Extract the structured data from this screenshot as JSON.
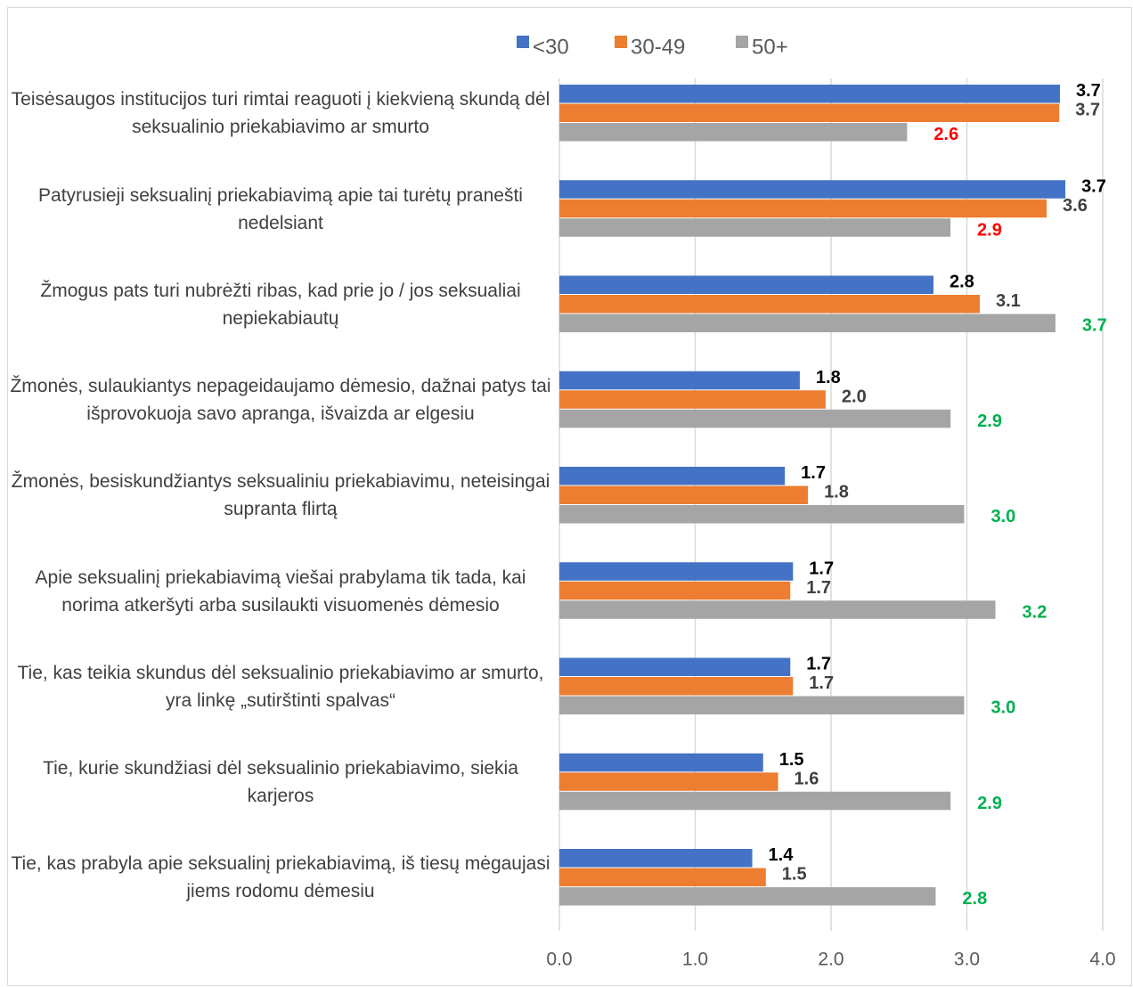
{
  "chart_data": {
    "type": "hbar",
    "categories": [
      "Teisėsaugos institucijos turi rimtai reaguoti į kiekvieną skundą dėl seksualinio priekabiavimo ar smurto",
      "Patyrusieji seksualinį priekabiavimą apie tai turėtų pranešti nedelsiant",
      "Žmogus pats turi nubrėžti ribas, kad prie jo / jos seksualiai nepiekabiautų",
      "Žmonės, sulaukiantys nepageidaujamo dėmesio, dažnai patys tai išprovokuoja savo apranga, išvaizda ar elgesiu",
      "Žmonės, besiskundžiantys seksualiniu priekabiavimu, neteisingai supranta flirtą",
      "Apie seksualinį priekabiavimą viešai prabylama tik tada, kai norima atkeršyti arba susilaukti visuomenės dėmesio",
      "Tie, kas teikia skundus dėl seksualinio priekabiavimo ar smurto, yra linkę „sutirštinti spalvas“",
      "Tie, kurie skundžiasi dėl seksualinio priekabiavimo, siekia karjeros",
      "Tie, kas prabyla apie seksualinį priekabiavimą, iš tiesų mėgaujasi jiems rodomu dėmesiu"
    ],
    "series": [
      {
        "name": "<30",
        "color": "#4472c4",
        "label_color": "#000000",
        "values": [
          3.685,
          3.725,
          2.754,
          1.77,
          1.66,
          1.72,
          1.7,
          1.5,
          1.42
        ],
        "value_labels": [
          "3.7",
          "3.7",
          "2.8",
          "1.8",
          "1.7",
          "1.7",
          "1.7",
          "1.5",
          "1.4"
        ]
      },
      {
        "name": "30-49",
        "color": "#ed7d31",
        "label_color": "#404040",
        "values": [
          3.68,
          3.587,
          3.095,
          1.96,
          1.83,
          1.7,
          1.72,
          1.61,
          1.52
        ],
        "value_labels": [
          "3.7",
          "3.6",
          "3.1",
          "2.0",
          "1.8",
          "1.7",
          "1.7",
          "1.6",
          "1.5"
        ]
      },
      {
        "name": "50+",
        "color": "#a5a5a5",
        "label_colors": [
          "#ff0000",
          "#ff0000",
          "#00b050",
          "#00b050",
          "#00b050",
          "#00b050",
          "#00b050",
          "#00b050",
          "#00b050"
        ],
        "values": [
          2.56,
          2.879,
          3.652,
          2.88,
          2.98,
          3.21,
          2.98,
          2.88,
          2.77
        ],
        "value_labels": [
          "2.6",
          "2.9",
          "3.7",
          "2.9",
          "3.0",
          "3.2",
          "3.0",
          "2.9",
          "2.8"
        ]
      }
    ],
    "xlim": [
      0,
      4
    ],
    "xticks": [
      {
        "value": 0,
        "label": "0.0"
      },
      {
        "value": 1,
        "label": "1.0"
      },
      {
        "value": 2,
        "label": "2.0"
      },
      {
        "value": 3,
        "label": "3.0"
      },
      {
        "value": 4,
        "label": "4.0"
      }
    ],
    "grid": true,
    "legend": "top"
  }
}
